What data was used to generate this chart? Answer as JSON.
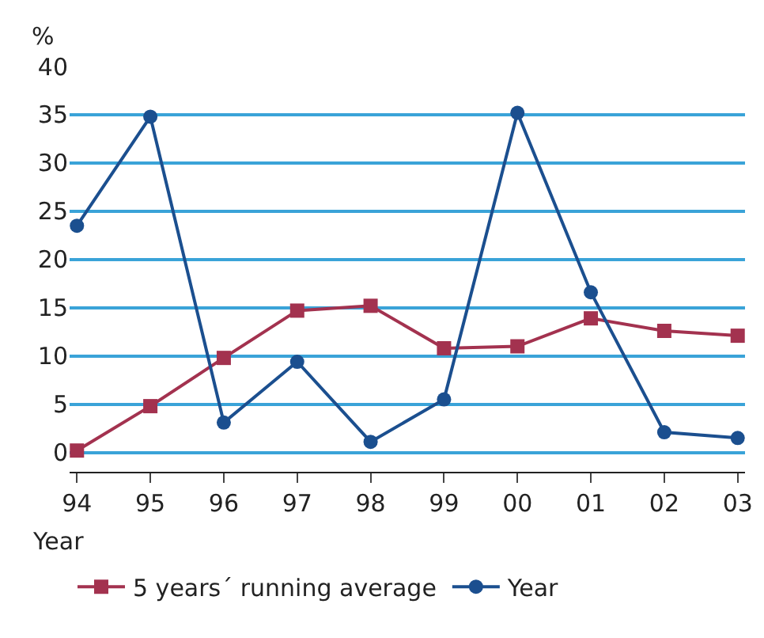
{
  "chart_data": {
    "type": "line",
    "xlabel": "Year",
    "ylabel": "%",
    "categories": [
      "94",
      "95",
      "96",
      "97",
      "98",
      "99",
      "00",
      "01",
      "02",
      "03"
    ],
    "series": [
      {
        "name": "5 years´ running average",
        "color": "#a3324f",
        "marker": "square",
        "values": [
          0.2,
          4.8,
          9.8,
          14.7,
          15.2,
          10.8,
          11.0,
          13.9,
          12.6,
          12.1
        ]
      },
      {
        "name": "Year",
        "color": "#1b4f8f",
        "marker": "circle",
        "values": [
          23.5,
          34.8,
          3.1,
          9.4,
          1.1,
          5.5,
          35.2,
          16.6,
          2.1,
          1.5
        ]
      }
    ],
    "ylim": [
      -2,
      40
    ],
    "yticks": [
      0,
      5,
      10,
      15,
      20,
      25,
      30,
      35,
      40
    ],
    "grid": "y",
    "legend": "bottom",
    "line_style": "solid"
  }
}
